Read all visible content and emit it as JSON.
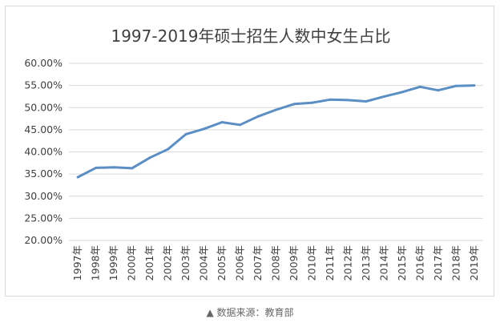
{
  "chart_data": {
    "type": "line",
    "title": "1997-2019年硕士招生人数中女生占比",
    "xlabel": "",
    "ylabel": "",
    "categories": [
      "1997年",
      "1998年",
      "1999年",
      "2000年",
      "2001年",
      "2002年",
      "2003年",
      "2004年",
      "2005年",
      "2006年",
      "2007年",
      "2008年",
      "2009年",
      "2010年",
      "2011年",
      "2012年",
      "2013年",
      "2014年",
      "2015年",
      "2016年",
      "2017年",
      "2018年",
      "2019年"
    ],
    "series": [
      {
        "values": [
          34.3,
          36.4,
          36.5,
          36.3,
          38.7,
          40.6,
          44.0,
          45.2,
          46.7,
          46.1,
          48.0,
          49.5,
          50.8,
          51.1,
          51.8,
          51.7,
          51.4,
          52.5,
          53.5,
          54.7,
          53.9,
          54.9,
          55.0
        ],
        "color": "#5b8ec4"
      }
    ],
    "ylim": [
      20,
      60
    ],
    "yticks": [
      "20.00%",
      "25.00%",
      "30.00%",
      "35.00%",
      "40.00%",
      "45.00%",
      "50.00%",
      "55.00%",
      "60.00%"
    ],
    "grid": true,
    "legend": "none"
  },
  "source_note": "▲ 数据来源：教育部"
}
